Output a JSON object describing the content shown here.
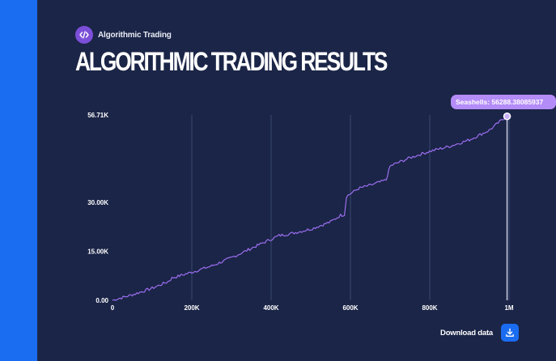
{
  "app": {
    "name": "Algorithmic Trading",
    "icon": "code-icon"
  },
  "page": {
    "title": "ALGORITHMIC TRADING RESULTS"
  },
  "tooltip": {
    "label": "Seashells: 56288.38085937"
  },
  "download": {
    "label": "Download data",
    "icon": "download-icon"
  },
  "colors": {
    "background": "#1b2547",
    "sidebar": "#1a6cf0",
    "line": "#9b6ef0",
    "tooltip": "#b48cf7",
    "icon_bg": "#7b4fd8"
  },
  "chart_data": {
    "type": "line",
    "title": "",
    "xlabel": "",
    "ylabel": "",
    "xlim": [
      0,
      1000000
    ],
    "ylim": [
      0,
      56710
    ],
    "x_ticks": [
      0,
      200000,
      400000,
      600000,
      800000,
      1000000
    ],
    "x_tick_labels": [
      "0",
      "200K",
      "400K",
      "600K",
      "800K",
      "1M"
    ],
    "y_ticks": [
      0,
      15000,
      30000,
      56710
    ],
    "y_tick_labels": [
      "0.00",
      "15.00K",
      "30.00K",
      "56.71K"
    ],
    "grid": "vertical",
    "series": [
      {
        "name": "Seashells",
        "x": [
          0,
          50000,
          100000,
          140000,
          150000,
          200000,
          250000,
          300000,
          350000,
          400000,
          420000,
          450000,
          500000,
          550000,
          575000,
          585000,
          590000,
          620000,
          650000,
          690000,
          700000,
          710000,
          750000,
          800000,
          850000,
          900000,
          950000,
          980000,
          995000
        ],
        "y": [
          0,
          1700,
          3700,
          5700,
          6800,
          8600,
          10500,
          13000,
          15900,
          18700,
          19800,
          20400,
          21800,
          24000,
          26000,
          26200,
          31800,
          34200,
          35200,
          36800,
          41000,
          41600,
          43600,
          45600,
          47100,
          49100,
          52000,
          55000,
          56288.38
        ]
      }
    ],
    "highlight": {
      "x": 995000,
      "y": 56288.38
    }
  }
}
